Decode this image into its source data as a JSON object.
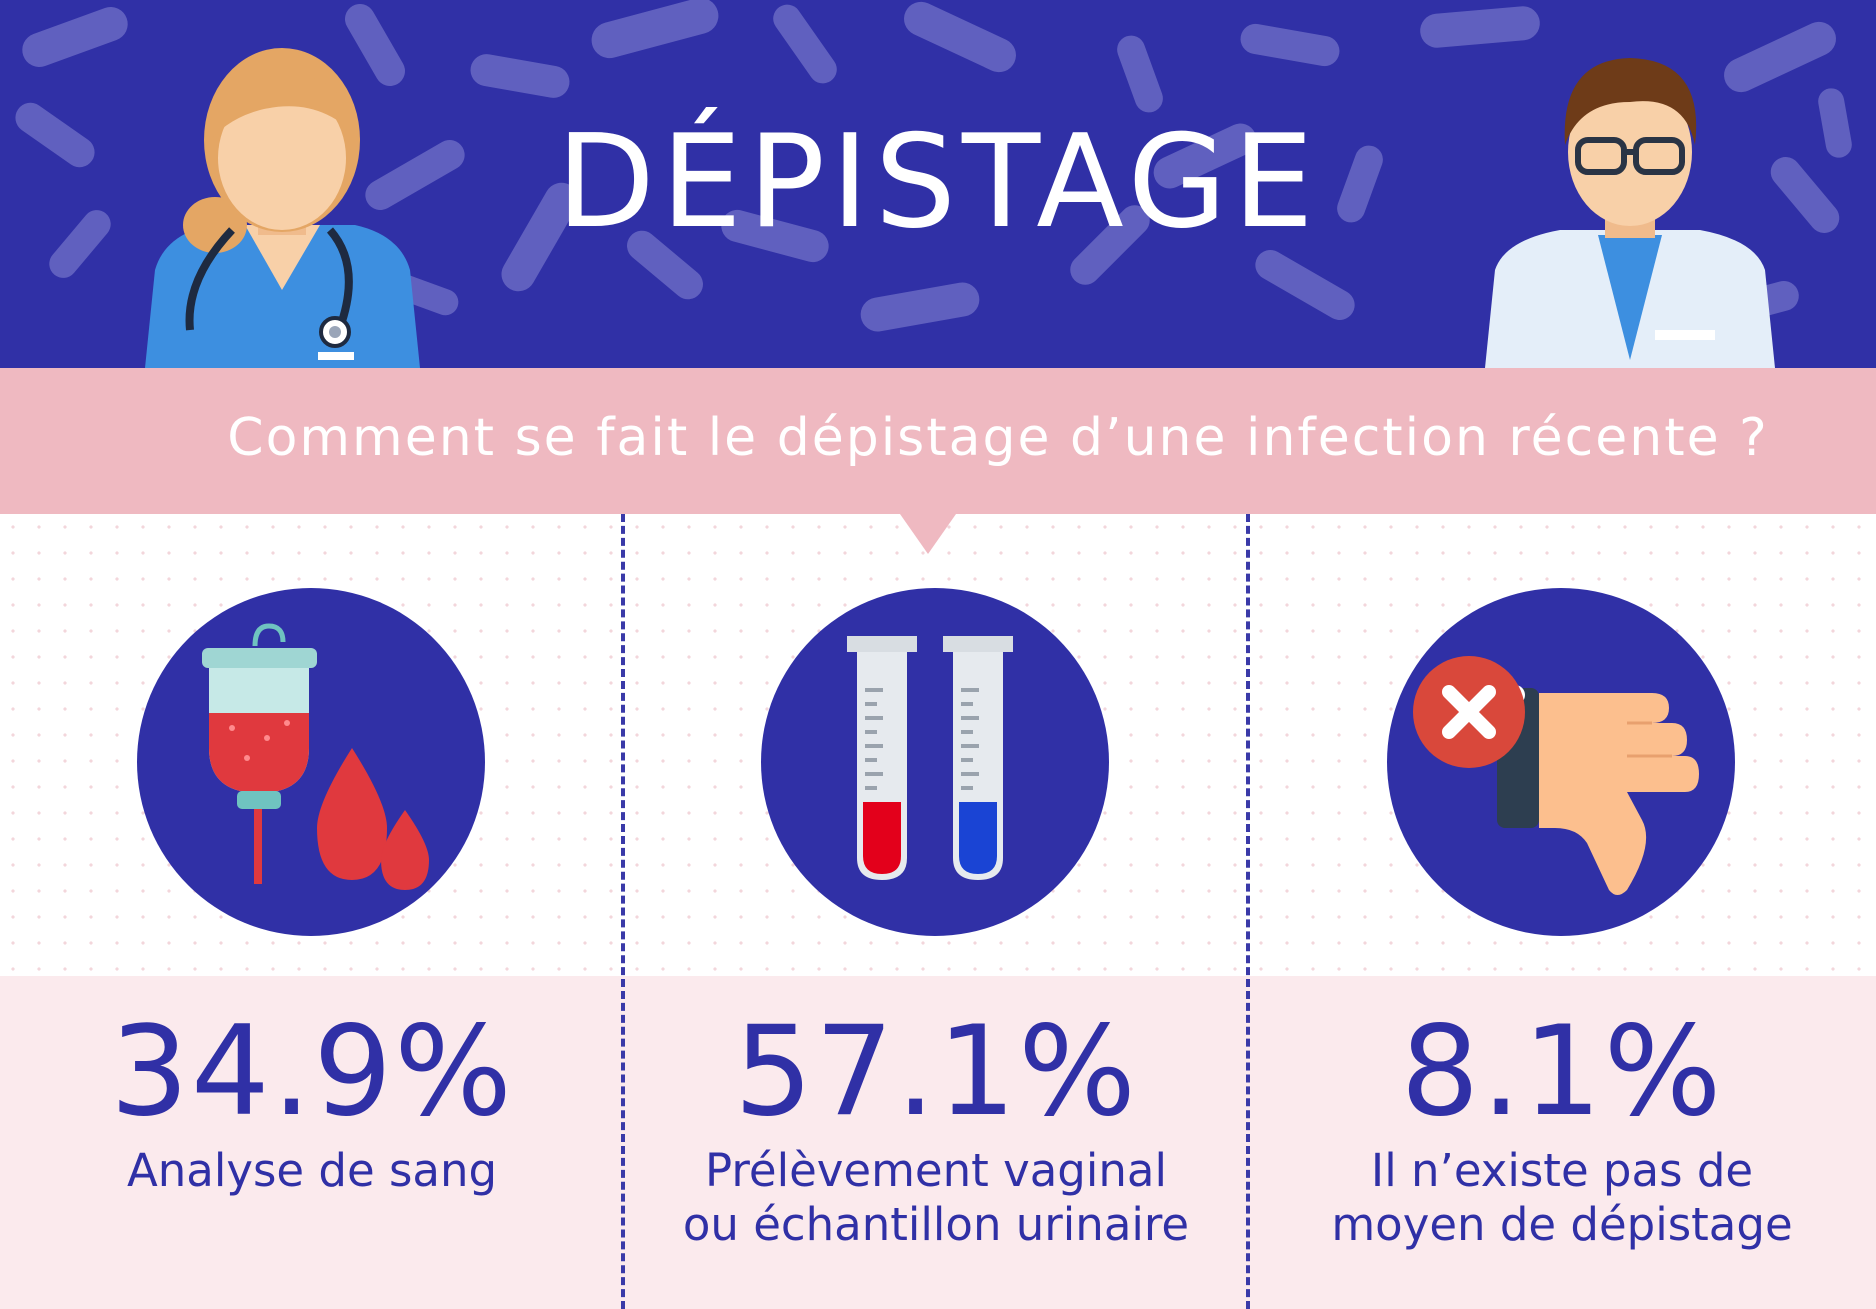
{
  "header": {
    "title": "DÉPISTAGE",
    "background_color": "#3030a6",
    "pattern_color": "#6a6ac4"
  },
  "question": {
    "text": "Comment se fait le dépistage d’une infection récente ?",
    "band_color": "#efb9c1"
  },
  "results": [
    {
      "value": "34.9%",
      "label_line1": "Analyse de sang",
      "label_line2": "",
      "icon": "blood-bag-icon"
    },
    {
      "value": "57.1%",
      "label_line1": "Prélèvement vaginal",
      "label_line2": "ou échantillon urinaire",
      "icon": "test-tubes-icon"
    },
    {
      "value": "8.1%",
      "label_line1": "Il n’existe pas de",
      "label_line2": "moyen de dépistage",
      "icon": "thumbs-down-icon"
    }
  ],
  "colors": {
    "accent": "#3030a6",
    "stats_band": "#fbeaed",
    "blood_red": "#e0393e",
    "urine_blue": "#1a44d4"
  }
}
